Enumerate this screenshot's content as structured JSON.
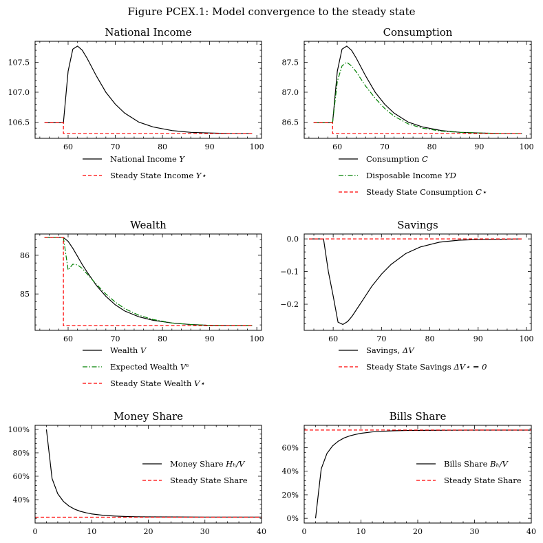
{
  "figure": {
    "title": "Figure PCEX.1: Model convergence to the steady state"
  },
  "chart_data": [
    {
      "type": "line",
      "title": "National Income",
      "xlim": [
        53,
        101
      ],
      "ylim": [
        106.23,
        107.85
      ],
      "xticks": [
        60,
        70,
        80,
        90,
        100
      ],
      "yticks": [
        106.5,
        107.0,
        107.5
      ],
      "ytick_labels": [
        "106.5",
        "107.0",
        "107.5"
      ],
      "legend_position": "below",
      "series": [
        {
          "name": "National Income Y",
          "name_base": "National Income ",
          "name_math": "Y",
          "color": "#000000",
          "dash": "solid",
          "x": [
            55,
            58,
            59,
            60,
            61,
            62,
            63,
            64,
            66,
            68,
            70,
            72,
            75,
            78,
            82,
            86,
            90,
            95,
            99
          ],
          "y": [
            106.49,
            106.49,
            106.49,
            107.35,
            107.72,
            107.77,
            107.7,
            107.57,
            107.27,
            107.0,
            106.8,
            106.65,
            106.5,
            106.42,
            106.36,
            106.33,
            106.32,
            106.31,
            106.31
          ]
        },
        {
          "name": "Steady State Income Y*",
          "name_base": "Steady State Income ",
          "name_math": "Y⋆",
          "color": "#ff0000",
          "dash": "dashed",
          "x": [
            55,
            59,
            59,
            99
          ],
          "y": [
            106.49,
            106.49,
            106.31,
            106.31
          ]
        }
      ]
    },
    {
      "type": "line",
      "title": "Consumption",
      "xlim": [
        53,
        101
      ],
      "ylim": [
        86.23,
        87.85
      ],
      "xticks": [
        60,
        70,
        80,
        90,
        100
      ],
      "yticks": [
        86.5,
        87.0,
        87.5
      ],
      "ytick_labels": [
        "86.5",
        "87.0",
        "87.5"
      ],
      "legend_position": "below",
      "series": [
        {
          "name": "Consumption C",
          "name_base": "Consumption ",
          "name_math": "C",
          "color": "#000000",
          "dash": "solid",
          "x": [
            55,
            58,
            59,
            60,
            61,
            62,
            63,
            64,
            66,
            68,
            70,
            72,
            75,
            78,
            82,
            86,
            90,
            95,
            99
          ],
          "y": [
            86.49,
            86.49,
            86.49,
            87.35,
            87.72,
            87.77,
            87.7,
            87.57,
            87.27,
            87.0,
            86.8,
            86.65,
            86.5,
            86.42,
            86.36,
            86.33,
            86.32,
            86.31,
            86.31
          ]
        },
        {
          "name": "Disposable Income YD",
          "name_base": "Disposable Income ",
          "name_math": "YD",
          "color": "#008000",
          "dash": "dashdot",
          "x": [
            55,
            58,
            59,
            60,
            61,
            62,
            63,
            64,
            66,
            68,
            70,
            72,
            75,
            78,
            82,
            86,
            90,
            95,
            99
          ],
          "y": [
            86.49,
            86.49,
            86.49,
            87.18,
            87.44,
            87.5,
            87.44,
            87.34,
            87.1,
            86.9,
            86.73,
            86.6,
            86.47,
            86.4,
            86.35,
            86.33,
            86.32,
            86.31,
            86.31
          ]
        },
        {
          "name": "Steady State Consumption C*",
          "name_base": "Steady State Consumption ",
          "name_math": "C⋆",
          "color": "#ff0000",
          "dash": "dashed",
          "x": [
            55,
            59,
            59,
            99
          ],
          "y": [
            86.49,
            86.49,
            86.31,
            86.31
          ]
        }
      ]
    },
    {
      "type": "line",
      "title": "Wealth",
      "xlim": [
        53,
        101
      ],
      "ylim": [
        84.06,
        86.55
      ],
      "xticks": [
        60,
        70,
        80,
        90,
        100
      ],
      "yticks": [
        85,
        86
      ],
      "ytick_labels": [
        "85",
        "86"
      ],
      "legend_position": "below",
      "series": [
        {
          "name": "Wealth V",
          "name_base": "Wealth ",
          "name_math": "V",
          "color": "#000000",
          "dash": "solid",
          "x": [
            55,
            58,
            59,
            60,
            61,
            62,
            63,
            64,
            66,
            68,
            70,
            72,
            75,
            78,
            82,
            86,
            90,
            95,
            99
          ],
          "y": [
            86.46,
            86.46,
            86.46,
            86.36,
            86.18,
            85.97,
            85.76,
            85.57,
            85.22,
            84.94,
            84.72,
            84.56,
            84.41,
            84.32,
            84.25,
            84.21,
            84.19,
            84.18,
            84.18
          ]
        },
        {
          "name": "Expected Wealth V^e",
          "name_base": "Expected Wealth ",
          "name_math": "Vᵉ",
          "color": "#008000",
          "dash": "dashdot",
          "x": [
            55,
            58,
            59,
            60,
            61,
            62,
            63,
            64,
            66,
            68,
            70,
            72,
            75,
            78,
            82,
            86,
            90,
            95,
            99
          ],
          "y": [
            86.46,
            86.46,
            86.46,
            85.62,
            85.77,
            85.75,
            85.66,
            85.52,
            85.25,
            85.0,
            84.79,
            84.62,
            84.45,
            84.34,
            84.25,
            84.21,
            84.19,
            84.18,
            84.18
          ]
        },
        {
          "name": "Steady State Wealth V*",
          "name_base": "Steady State Wealth ",
          "name_math": "V⋆",
          "color": "#ff0000",
          "dash": "dashed",
          "x": [
            55,
            59,
            59,
            99
          ],
          "y": [
            86.46,
            86.46,
            84.18,
            84.18
          ]
        }
      ]
    },
    {
      "type": "line",
      "title": "Savings",
      "xlim": [
        54,
        101
      ],
      "ylim": [
        -0.28,
        0.015
      ],
      "xticks": [
        60,
        70,
        80,
        90,
        100
      ],
      "yticks": [
        0.0,
        -0.1,
        -0.2
      ],
      "ytick_labels": [
        "0.0",
        "−0.1",
        "−0.2"
      ],
      "legend_position": "below",
      "series": [
        {
          "name": "Savings, ΔV",
          "name_base": "Savings, ",
          "name_math": "ΔV",
          "color": "#000000",
          "dash": "solid",
          "x": [
            55,
            58,
            59,
            60,
            61,
            62,
            63,
            64,
            66,
            68,
            70,
            72,
            75,
            78,
            82,
            86,
            90,
            95,
            99
          ],
          "y": [
            0.0,
            0.0,
            -0.1,
            -0.175,
            -0.255,
            -0.262,
            -0.253,
            -0.235,
            -0.19,
            -0.145,
            -0.108,
            -0.078,
            -0.045,
            -0.025,
            -0.01,
            -0.004,
            -0.002,
            -0.001,
            0.0
          ]
        },
        {
          "name": "Steady State Savings ΔV* = 0",
          "name_base": "Steady State Savings ",
          "name_math": "ΔV⋆ = 0",
          "color": "#ff0000",
          "dash": "dashed",
          "x": [
            55,
            99
          ],
          "y": [
            0.0,
            0.0
          ]
        }
      ]
    },
    {
      "type": "line",
      "title": "Money Share",
      "xlim": [
        0,
        40
      ],
      "ylim": [
        0.2,
        1.035
      ],
      "xticks": [
        0,
        10,
        20,
        30,
        40
      ],
      "yticks": [
        0.4,
        0.6,
        0.8,
        1.0
      ],
      "ytick_labels": [
        "40%",
        "60%",
        "80%",
        "100%"
      ],
      "legend_position": "right",
      "series": [
        {
          "name": "Money Share H_h/V",
          "name_base": "Money Share ",
          "name_math": "Hₕ/V",
          "color": "#000000",
          "dash": "solid",
          "x": [
            2,
            3,
            4,
            5,
            6,
            7,
            8,
            9,
            10,
            12,
            14,
            16,
            18,
            20,
            25,
            30,
            35,
            40
          ],
          "y": [
            1.0,
            0.58,
            0.45,
            0.385,
            0.345,
            0.318,
            0.3,
            0.288,
            0.278,
            0.266,
            0.26,
            0.256,
            0.254,
            0.253,
            0.252,
            0.251,
            0.251,
            0.251
          ]
        },
        {
          "name": "Steady State Share",
          "name_base": "Steady State Share",
          "name_math": "",
          "color": "#ff0000",
          "dash": "dashed",
          "x": [
            0,
            40
          ],
          "y": [
            0.25,
            0.25
          ]
        }
      ]
    },
    {
      "type": "line",
      "title": "Bills Share",
      "xlim": [
        0,
        40
      ],
      "ylim": [
        -0.04,
        0.79
      ],
      "xticks": [
        0,
        10,
        20,
        30,
        40
      ],
      "yticks": [
        0.0,
        0.2,
        0.4,
        0.6
      ],
      "ytick_labels": [
        "0%",
        "20%",
        "40%",
        "60%"
      ],
      "legend_position": "right",
      "series": [
        {
          "name": "Bills Share B_h/V",
          "name_base": "Bills Share ",
          "name_math": "Bₕ/V",
          "color": "#000000",
          "dash": "solid",
          "x": [
            2,
            3,
            4,
            5,
            6,
            7,
            8,
            9,
            10,
            12,
            14,
            16,
            18,
            20,
            25,
            30,
            35,
            40
          ],
          "y": [
            0.0,
            0.42,
            0.55,
            0.615,
            0.655,
            0.682,
            0.7,
            0.712,
            0.722,
            0.734,
            0.74,
            0.744,
            0.746,
            0.747,
            0.748,
            0.749,
            0.749,
            0.749
          ]
        },
        {
          "name": "Steady State Share",
          "name_base": "Steady State Share",
          "name_math": "",
          "color": "#ff0000",
          "dash": "dashed",
          "x": [
            0,
            40
          ],
          "y": [
            0.75,
            0.75
          ]
        }
      ]
    }
  ]
}
